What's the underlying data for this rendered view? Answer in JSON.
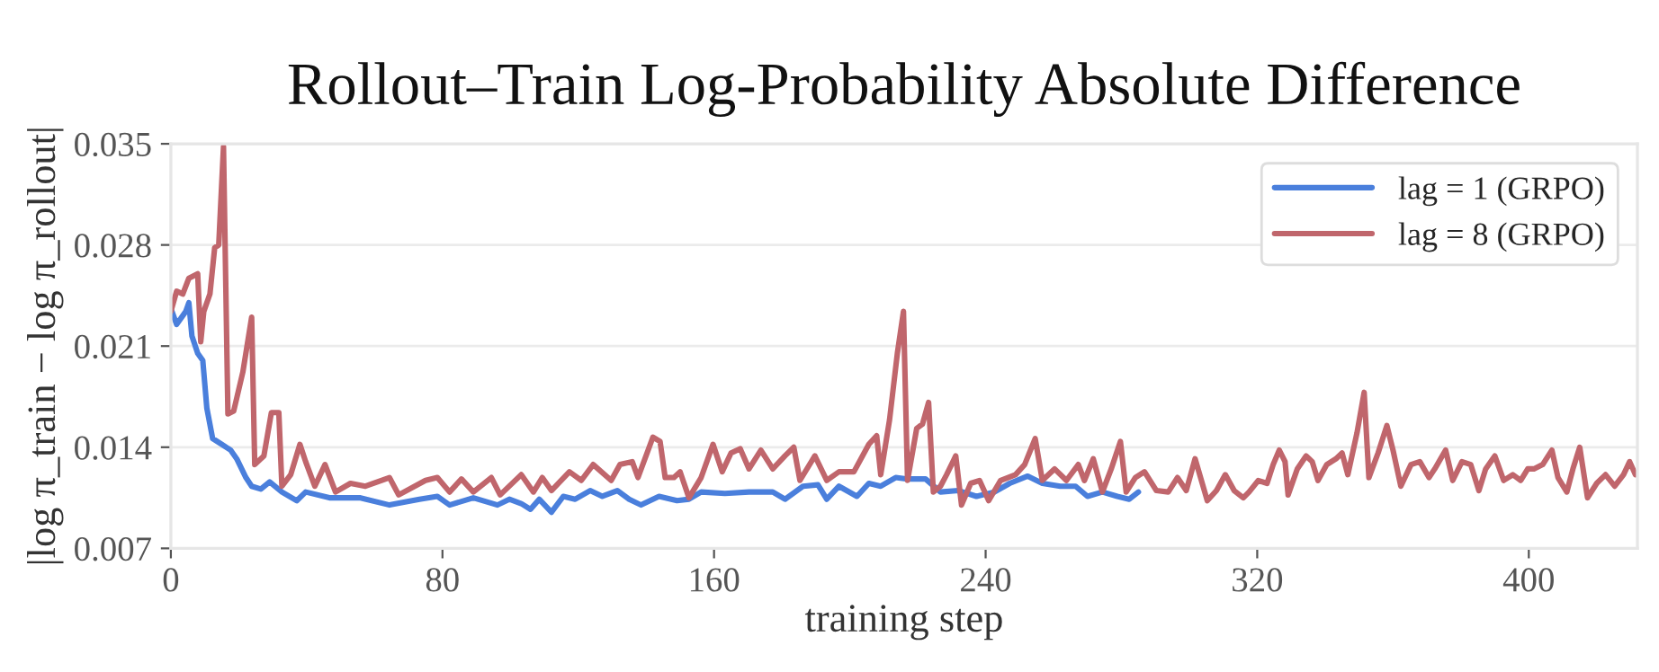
{
  "chart_data": {
    "type": "line",
    "title": "Rollout–Train Log-Probability Absolute Difference",
    "xlabel": "training step",
    "ylabel": "|log π_train − log π_rollout|",
    "xlim": [
      0,
      432
    ],
    "ylim": [
      0.007,
      0.035
    ],
    "xticks": [
      0,
      80,
      160,
      240,
      320,
      400
    ],
    "yticks": [
      0.007,
      0.014,
      0.021,
      0.028,
      0.035
    ],
    "grid": "y",
    "legend": "top right",
    "line_style": "solid",
    "marker": "none",
    "series": [
      {
        "name": "lag = 1 (GRPO)",
        "color": "#4a7fdc",
        "x": [
          0,
          1.7,
          4.4,
          5.3,
          6.2,
          7.9,
          9.4,
          10.6,
          12.3,
          15,
          17.6,
          19.4,
          22.1,
          23.8,
          26.5,
          29.1,
          32.7,
          37.1,
          39.7,
          46.7,
          55.6,
          64.4,
          73.2,
          78.5,
          82.1,
          89.1,
          96.2,
          99.7,
          103.2,
          105.9,
          108.5,
          112.1,
          115.6,
          119.1,
          123.5,
          127.1,
          131.5,
          135,
          138.5,
          143.8,
          149.1,
          152.6,
          156.2,
          163.2,
          170.3,
          177.3,
          180.9,
          186.2,
          190.6,
          193.2,
          196.8,
          202.1,
          205.6,
          209.1,
          213.5,
          217,
          222.3,
          226.7,
          232,
          237.3,
          242.6,
          247.1,
          252.4,
          256.7,
          262,
          266.5,
          270,
          274.4,
          278.8,
          282.3,
          285
        ],
        "values": [
          0.0236,
          0.0225,
          0.0234,
          0.024,
          0.0217,
          0.0205,
          0.02,
          0.0167,
          0.0146,
          0.0142,
          0.0138,
          0.0132,
          0.0119,
          0.0113,
          0.0111,
          0.0116,
          0.0109,
          0.0103,
          0.0109,
          0.0105,
          0.0105,
          0.01,
          0.0104,
          0.0106,
          0.01,
          0.0105,
          0.01,
          0.0104,
          0.0101,
          0.0097,
          0.0104,
          0.0095,
          0.0106,
          0.0104,
          0.011,
          0.0106,
          0.011,
          0.0104,
          0.01,
          0.0106,
          0.0103,
          0.0104,
          0.0109,
          0.0108,
          0.0109,
          0.0109,
          0.0104,
          0.0113,
          0.0114,
          0.0104,
          0.0113,
          0.0106,
          0.0115,
          0.0113,
          0.0119,
          0.0118,
          0.0118,
          0.0109,
          0.011,
          0.0106,
          0.0109,
          0.0115,
          0.012,
          0.0115,
          0.0113,
          0.0113,
          0.0106,
          0.0109,
          0.0106,
          0.0104,
          0.0109
        ]
      },
      {
        "name": "lag = 8 (GRPO)",
        "color": "#c0666c",
        "x": [
          0,
          1.7,
          3.5,
          5.3,
          7.9,
          8.8,
          9.7,
          11.5,
          12.9,
          14.1,
          15.5,
          16.8,
          18.5,
          21.2,
          23.8,
          24.7,
          27.4,
          29.6,
          31.8,
          32.7,
          35.3,
          38,
          39.7,
          42.4,
          45.4,
          48.5,
          52.9,
          57.3,
          64.4,
          67.1,
          75,
          78.5,
          82.1,
          85.6,
          89.1,
          94.4,
          97,
          103.2,
          106.8,
          109.4,
          112.1,
          117.4,
          120.9,
          124.4,
          129.7,
          132.3,
          135.9,
          137.6,
          142,
          144.1,
          145.6,
          148.2,
          150,
          152.6,
          156.2,
          159.7,
          162.4,
          165,
          167.7,
          170.3,
          173.8,
          177.3,
          180.9,
          183.5,
          185.3,
          189.7,
          193.2,
          196.8,
          201.2,
          205.6,
          207.9,
          209.1,
          211.7,
          214,
          215.8,
          217,
          219.7,
          221.4,
          223.2,
          224.6,
          226.7,
          228.5,
          231.2,
          232.9,
          235.6,
          238.2,
          240.9,
          244.4,
          248.8,
          251.5,
          254.6,
          256.7,
          260.3,
          263.8,
          267.3,
          269.1,
          271.7,
          274.4,
          277,
          279.7,
          281.4,
          284.1,
          286.8,
          290.3,
          293.8,
          296.5,
          299.1,
          301.7,
          305.3,
          308,
          310.6,
          313.2,
          315.9,
          317.6,
          320.3,
          322.9,
          324.7,
          326.5,
          328.2,
          329.1,
          331.8,
          334.4,
          336.2,
          337.9,
          340.5,
          343.2,
          345,
          346.7,
          349.4,
          351.5,
          352.9,
          355.6,
          358.2,
          360,
          362.3,
          365.3,
          367.9,
          370.6,
          372.3,
          375.5,
          377.6,
          380.3,
          382.9,
          385.3,
          387.3,
          390,
          392.6,
          395.3,
          397.6,
          399.7,
          401.5,
          404.1,
          406.8,
          408.6,
          411.2,
          413,
          415,
          417.3,
          420,
          422.6,
          425.3,
          427.9,
          429.7,
          431.4
        ],
        "values": [
          0.0234,
          0.0248,
          0.0246,
          0.0257,
          0.026,
          0.0213,
          0.0234,
          0.0246,
          0.0278,
          0.028,
          0.0348,
          0.0163,
          0.0165,
          0.0192,
          0.023,
          0.0128,
          0.0134,
          0.0164,
          0.0164,
          0.0113,
          0.0121,
          0.0142,
          0.013,
          0.0113,
          0.0128,
          0.0109,
          0.0115,
          0.0113,
          0.0119,
          0.0107,
          0.0117,
          0.0119,
          0.0109,
          0.0118,
          0.0109,
          0.0119,
          0.0107,
          0.0121,
          0.0109,
          0.0119,
          0.011,
          0.0123,
          0.0117,
          0.0128,
          0.0117,
          0.0128,
          0.013,
          0.0119,
          0.0147,
          0.0144,
          0.0119,
          0.0119,
          0.0123,
          0.0105,
          0.0119,
          0.0142,
          0.0123,
          0.0136,
          0.0139,
          0.0125,
          0.0138,
          0.0125,
          0.0134,
          0.014,
          0.0117,
          0.0134,
          0.0117,
          0.0123,
          0.0123,
          0.0142,
          0.0148,
          0.0121,
          0.0159,
          0.0205,
          0.0234,
          0.0117,
          0.0153,
          0.0156,
          0.0171,
          0.0109,
          0.0113,
          0.0121,
          0.0134,
          0.01,
          0.0115,
          0.0117,
          0.0103,
          0.0117,
          0.0121,
          0.0128,
          0.0146,
          0.0117,
          0.0125,
          0.0117,
          0.0128,
          0.0117,
          0.0132,
          0.0109,
          0.0125,
          0.0144,
          0.0109,
          0.0119,
          0.0123,
          0.011,
          0.0109,
          0.0119,
          0.011,
          0.0132,
          0.0103,
          0.011,
          0.0121,
          0.011,
          0.0105,
          0.0109,
          0.0117,
          0.0115,
          0.0128,
          0.0138,
          0.013,
          0.0107,
          0.0125,
          0.0134,
          0.013,
          0.0117,
          0.0128,
          0.0132,
          0.0136,
          0.0121,
          0.015,
          0.0178,
          0.0119,
          0.0136,
          0.0155,
          0.0138,
          0.0113,
          0.0128,
          0.013,
          0.0119,
          0.0125,
          0.0138,
          0.0117,
          0.013,
          0.0128,
          0.011,
          0.0125,
          0.0134,
          0.0117,
          0.0121,
          0.0117,
          0.0125,
          0.0125,
          0.0128,
          0.0138,
          0.0119,
          0.0109,
          0.0125,
          0.014,
          0.0105,
          0.0115,
          0.0121,
          0.0113,
          0.0121,
          0.013,
          0.0121
        ]
      }
    ]
  }
}
